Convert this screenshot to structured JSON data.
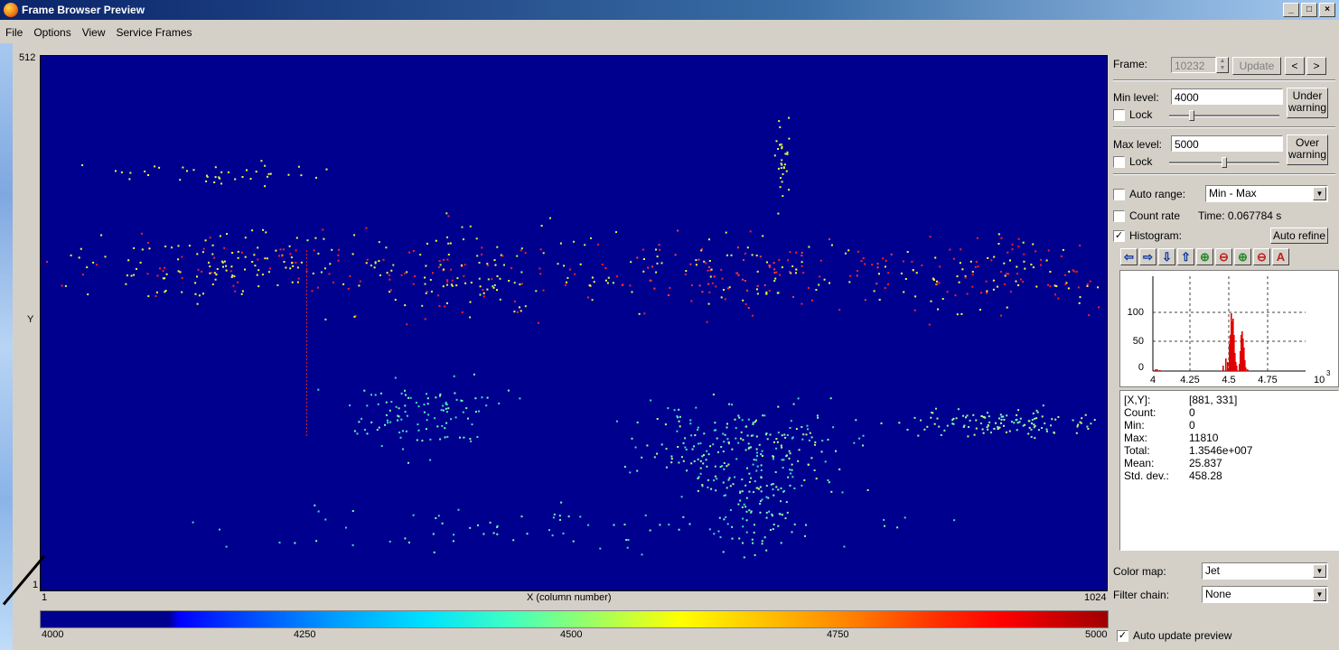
{
  "window": {
    "title": "Frame Browser Preview"
  },
  "menu": [
    "File",
    "Options",
    "View",
    "Service Frames"
  ],
  "plot": {
    "y_top": "512",
    "y_bottom": "1",
    "y_label": "Y",
    "x_left": "1",
    "x_right": "1024",
    "x_label": "X (column number)"
  },
  "colorbar": {
    "ticks": [
      "4000",
      "4250",
      "4500",
      "4750",
      "5000"
    ]
  },
  "frame": {
    "label": "Frame:",
    "value": "10232",
    "update": "Update",
    "prev": "<",
    "next": ">"
  },
  "min_level": {
    "label": "Min level:",
    "value": "4000",
    "lock": "Lock",
    "warning": [
      "Under",
      "warning"
    ]
  },
  "max_level": {
    "label": "Max level:",
    "value": "5000",
    "lock": "Lock",
    "warning": [
      "Over",
      "warning"
    ]
  },
  "auto_range": {
    "label": "Auto range:",
    "value": "Min - Max"
  },
  "count_rate": {
    "label": "Count rate",
    "time": "Time: 0.067784 s"
  },
  "histogram": {
    "label": "Histogram:",
    "checked": true,
    "auto_refine": "Auto refine",
    "y_ticks": [
      "100",
      "50",
      "0"
    ],
    "x_ticks": [
      "4",
      "4.25",
      "4.5",
      "4.75"
    ],
    "x_exp": "10",
    "x_exp_power": "3"
  },
  "stats": [
    {
      "k": "[X,Y]:",
      "v": "[881, 331]"
    },
    {
      "k": "Count:",
      "v": "0"
    },
    {
      "k": "Min:",
      "v": "0"
    },
    {
      "k": "Max:",
      "v": "11810"
    },
    {
      "k": "Total:",
      "v": "1.3546e+007"
    },
    {
      "k": "Mean:",
      "v": "25.837"
    },
    {
      "k": "Std. dev.:",
      "v": "458.28"
    }
  ],
  "color_map": {
    "label": "Color map:",
    "value": "Jet"
  },
  "filter_chain": {
    "label": "Filter chain:",
    "value": "None"
  },
  "auto_update": {
    "label": "Auto update preview",
    "checked": true
  }
}
